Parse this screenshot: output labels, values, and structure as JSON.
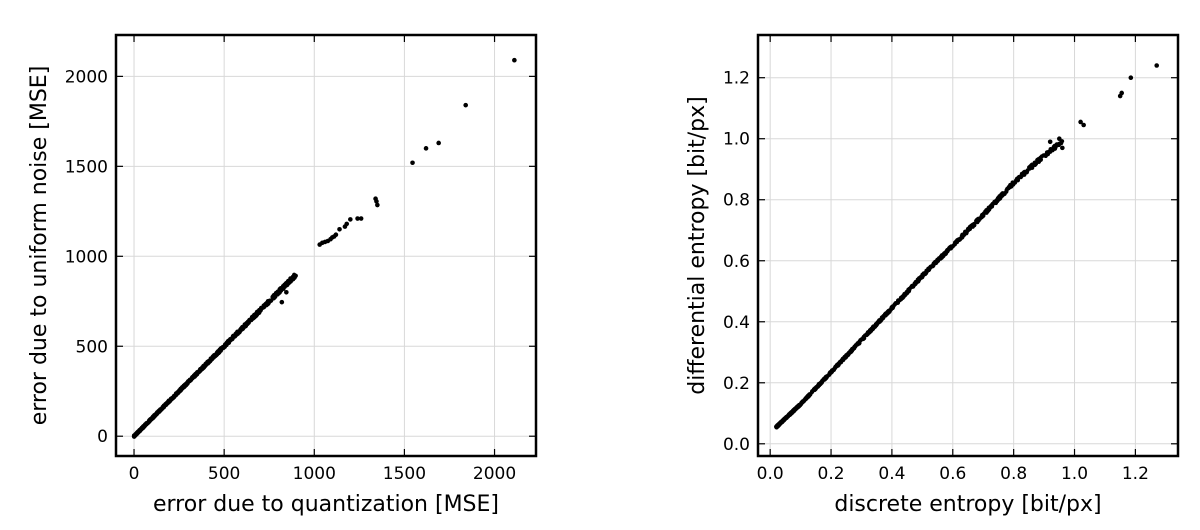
{
  "chart_data": [
    {
      "type": "scatter",
      "xlabel": "error due to quantization [MSE]",
      "ylabel": "error due to uniform noise [MSE]",
      "xlim": [
        -100,
        2230
      ],
      "ylim": [
        -110,
        2230
      ],
      "xticks": [
        0,
        500,
        1000,
        1500,
        2000
      ],
      "yticks": [
        0,
        500,
        1000,
        1500,
        2000
      ],
      "grid": true,
      "marker_color": "#000000",
      "dense_range": [
        0,
        900
      ],
      "dense_slope": 1.0,
      "points": [
        [
          1030,
          1065
        ],
        [
          1045,
          1075
        ],
        [
          1060,
          1080
        ],
        [
          1075,
          1085
        ],
        [
          1090,
          1095
        ],
        [
          1100,
          1105
        ],
        [
          1110,
          1110
        ],
        [
          1120,
          1120
        ],
        [
          1140,
          1150
        ],
        [
          1170,
          1165
        ],
        [
          1180,
          1180
        ],
        [
          1200,
          1205
        ],
        [
          1240,
          1210
        ],
        [
          1260,
          1210
        ],
        [
          1340,
          1320
        ],
        [
          1345,
          1305
        ],
        [
          1350,
          1285
        ],
        [
          1545,
          1520
        ],
        [
          1620,
          1600
        ],
        [
          1690,
          1630
        ],
        [
          1840,
          1840
        ],
        [
          2110,
          2090
        ],
        [
          820,
          745
        ],
        [
          845,
          800
        ]
      ]
    },
    {
      "type": "scatter",
      "xlabel": "discrete entropy [bit/px]",
      "ylabel": "differential entropy [bit/px]",
      "xlim": [
        -0.04,
        1.34
      ],
      "ylim": [
        -0.04,
        1.34
      ],
      "xticks": [
        0.0,
        0.2,
        0.4,
        0.6,
        0.8,
        1.0,
        1.2
      ],
      "yticks": [
        0.0,
        0.2,
        0.4,
        0.6,
        0.8,
        1.0,
        1.2
      ],
      "tick_format": 1,
      "grid": true,
      "marker_color": "#000000",
      "dense_range": [
        0.02,
        0.96
      ],
      "dense_curve": [
        [
          0.02,
          0.055
        ],
        [
          0.1,
          0.13
        ],
        [
          0.2,
          0.235
        ],
        [
          0.3,
          0.34
        ],
        [
          0.4,
          0.445
        ],
        [
          0.5,
          0.55
        ],
        [
          0.6,
          0.65
        ],
        [
          0.7,
          0.75
        ],
        [
          0.8,
          0.855
        ],
        [
          0.9,
          0.945
        ],
        [
          0.96,
          0.99
        ]
      ],
      "points": [
        [
          0.92,
          0.99
        ],
        [
          0.95,
          1.0
        ],
        [
          0.96,
          0.97
        ],
        [
          1.02,
          1.055
        ],
        [
          1.03,
          1.045
        ],
        [
          1.15,
          1.14
        ],
        [
          1.155,
          1.15
        ],
        [
          1.185,
          1.2
        ],
        [
          1.27,
          1.24
        ]
      ]
    }
  ]
}
